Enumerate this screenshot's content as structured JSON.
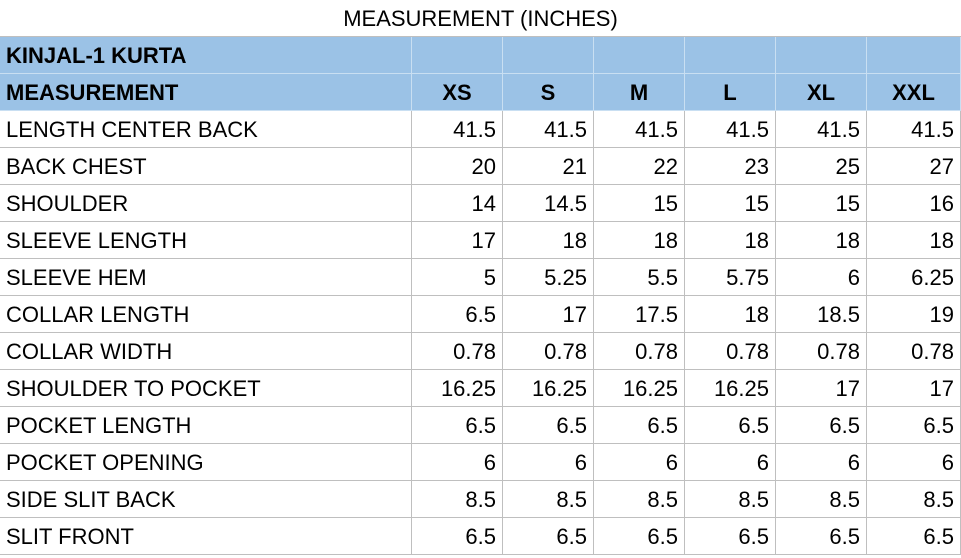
{
  "header": {
    "title": "MEASUREMENT (INCHES)"
  },
  "table": {
    "product": "KINJAL-1 KURTA",
    "columns": [
      "MEASUREMENT",
      "XS",
      "S",
      "M",
      "L",
      "XL",
      "XXL"
    ],
    "rows": [
      [
        "LENGTH CENTER BACK",
        41.5,
        41.5,
        41.5,
        41.5,
        41.5,
        41.5
      ],
      [
        "BACK CHEST",
        20,
        21,
        22,
        23,
        25,
        27
      ],
      [
        "SHOULDER",
        14,
        14.5,
        15,
        15,
        15,
        16
      ],
      [
        "SLEEVE LENGTH",
        17,
        18,
        18,
        18,
        18,
        18
      ],
      [
        "SLEEVE HEM",
        5,
        5.25,
        5.5,
        5.75,
        6,
        6.25
      ],
      [
        "COLLAR LENGTH",
        6.5,
        17,
        17.5,
        18,
        18.5,
        19
      ],
      [
        "COLLAR WIDTH",
        0.78,
        0.78,
        0.78,
        0.78,
        0.78,
        0.78
      ],
      [
        "SHOULDER TO POCKET",
        16.25,
        16.25,
        16.25,
        16.25,
        17,
        17
      ],
      [
        "POCKET LENGTH",
        6.5,
        6.5,
        6.5,
        6.5,
        6.5,
        6.5
      ],
      [
        "POCKET OPENING",
        6,
        6,
        6,
        6,
        6,
        6
      ],
      [
        "SIDE SLIT BACK",
        8.5,
        8.5,
        8.5,
        8.5,
        8.5,
        8.5
      ],
      [
        "SLIT FRONT",
        6.5,
        6.5,
        6.5,
        6.5,
        6.5,
        6.5
      ]
    ]
  }
}
